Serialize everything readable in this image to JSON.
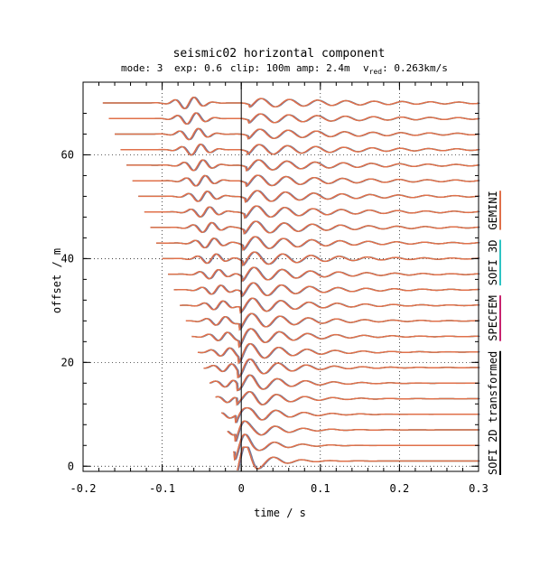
{
  "chart_data": {
    "type": "line",
    "title": "seismic02 horizontal component",
    "subtitle": {
      "mode": "mode: 3",
      "exp": "exp: 0.6",
      "clip": "clip: 100m",
      "amp": "amp: 2.4m",
      "vred_prefix": "v",
      "vred_sub": "red",
      "vred_suffix": ": 0.263km/s"
    },
    "xlabel": "time / s",
    "ylabel": "offset / m",
    "xlim": [
      -0.2,
      0.3
    ],
    "ylim": [
      -1,
      74
    ],
    "xticks": [
      -0.2,
      -0.1,
      0,
      0.1,
      0.2,
      0.3
    ],
    "xtick_labels": [
      "-0.2",
      "-0.1",
      "0",
      "0.1",
      "0.2",
      "0.3"
    ],
    "yticks": [
      0,
      20,
      40,
      60
    ],
    "ytick_labels": [
      "0",
      "20",
      "40",
      "60"
    ],
    "grid": "dotted at major ticks",
    "trace_offsets": [
      1,
      4,
      7,
      10,
      13,
      16,
      19,
      22,
      25,
      28,
      31,
      34,
      37,
      40,
      43,
      46,
      49,
      52,
      55,
      58,
      61,
      64,
      67,
      70
    ],
    "reduction_velocity_km_s": 0.263,
    "legend_position": "right, vertical",
    "series": [
      {
        "name": "SOFI 2D transformed",
        "color": "#000000"
      },
      {
        "name": "SPECFEM",
        "color": "#c8236e"
      },
      {
        "name": "SOFI 3D",
        "color": "#2ec4c4"
      },
      {
        "name": "GEMINI",
        "color": "#e0704a"
      }
    ]
  }
}
